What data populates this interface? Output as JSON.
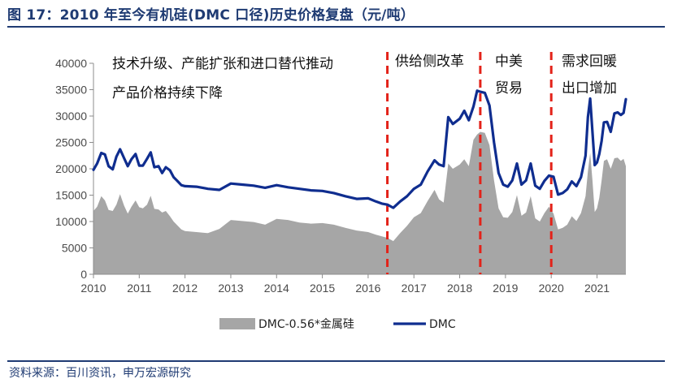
{
  "header": {
    "title": "图 17：2010 年至今有机硅(DMC 口径)历史价格复盘（元/吨）"
  },
  "footer": {
    "source": "资料来源：百川资讯，申万宏源研究"
  },
  "chart_data": {
    "type": "area+line",
    "title": "2010 年至今有机硅(DMC 口径)历史价格复盘（元/吨）",
    "unit": "元/吨",
    "xlim": [
      2010,
      2021.63
    ],
    "ylim": [
      0,
      40000
    ],
    "y_ticks": [
      "0",
      "5000",
      "10000",
      "15000",
      "20000",
      "25000",
      "30000",
      "35000",
      "40000"
    ],
    "x_ticks": [
      "2010",
      "2011",
      "2012",
      "2013",
      "2014",
      "2015",
      "2016",
      "2017",
      "2018",
      "2019",
      "2020",
      "2021"
    ],
    "grid": false,
    "legend": [
      "DMC-0.56*金属硅",
      "DMC"
    ],
    "colors": {
      "area": "#A6A6A6",
      "line": "#0F2D8F",
      "divider": "#E32219",
      "title": "#1F3B73"
    },
    "dividers": [
      2016.42,
      2018.45,
      2020.0
    ],
    "annotations": [
      "技术升级、产能扩张和进口替代推动",
      "产品价格持续下降",
      "供给侧改革",
      "中美",
      "贸易",
      "需求回暖",
      "出口增加"
    ],
    "series": [
      {
        "name": "DMC",
        "kind": "line",
        "x": [
          2010.0,
          2010.08,
          2010.17,
          2010.25,
          2010.33,
          2010.42,
          2010.5,
          2010.58,
          2010.67,
          2010.75,
          2010.83,
          2010.92,
          2011.0,
          2011.08,
          2011.17,
          2011.25,
          2011.33,
          2011.42,
          2011.5,
          2011.58,
          2011.67,
          2011.75,
          2011.83,
          2011.92,
          2012.0,
          2012.25,
          2012.5,
          2012.75,
          2013.0,
          2013.25,
          2013.5,
          2013.75,
          2014.0,
          2014.25,
          2014.5,
          2014.75,
          2015.0,
          2015.25,
          2015.5,
          2015.75,
          2016.0,
          2016.17,
          2016.3,
          2016.42,
          2016.55,
          2016.7,
          2016.85,
          2017.0,
          2017.15,
          2017.3,
          2017.45,
          2017.55,
          2017.65,
          2017.75,
          2017.85,
          2018.0,
          2018.1,
          2018.2,
          2018.3,
          2018.38,
          2018.45,
          2018.55,
          2018.65,
          2018.75,
          2018.85,
          2018.95,
          2019.05,
          2019.15,
          2019.25,
          2019.35,
          2019.45,
          2019.55,
          2019.65,
          2019.75,
          2019.85,
          2019.95,
          2020.05,
          2020.15,
          2020.25,
          2020.35,
          2020.45,
          2020.55,
          2020.65,
          2020.75,
          2020.8,
          2020.85,
          2020.9,
          2020.95,
          2021.0,
          2021.05,
          2021.1,
          2021.15,
          2021.22,
          2021.3,
          2021.38,
          2021.45,
          2021.52,
          2021.58,
          2021.63
        ],
        "values": [
          19800,
          21000,
          23000,
          22700,
          20500,
          19900,
          22300,
          23700,
          22000,
          20500,
          21800,
          22800,
          20600,
          20600,
          21900,
          23100,
          20300,
          20500,
          19200,
          20300,
          19700,
          18400,
          17700,
          16900,
          16700,
          16600,
          16200,
          16000,
          17200,
          17000,
          16800,
          16400,
          16900,
          16500,
          16200,
          15900,
          15800,
          15400,
          14800,
          14300,
          14400,
          13800,
          13400,
          13200,
          12600,
          13800,
          14800,
          16200,
          17000,
          19500,
          21600,
          20800,
          20500,
          29800,
          28500,
          29500,
          31000,
          29200,
          31800,
          34800,
          34600,
          34400,
          32000,
          25000,
          19200,
          17000,
          16600,
          17800,
          21000,
          17000,
          17800,
          21000,
          16800,
          16200,
          17700,
          18700,
          18500,
          15100,
          15400,
          16100,
          17600,
          16700,
          18400,
          22500,
          29800,
          33300,
          27000,
          20700,
          21200,
          22800,
          25300,
          28800,
          28900,
          27000,
          30500,
          30700,
          30200,
          30600,
          33200
        ]
      },
      {
        "name": "DMC-0.56*金属硅",
        "kind": "area",
        "x": [
          2010.0,
          2010.08,
          2010.17,
          2010.25,
          2010.33,
          2010.42,
          2010.5,
          2010.58,
          2010.67,
          2010.75,
          2010.83,
          2010.92,
          2011.0,
          2011.08,
          2011.17,
          2011.25,
          2011.33,
          2011.42,
          2011.5,
          2011.58,
          2011.67,
          2011.75,
          2011.83,
          2011.92,
          2012.0,
          2012.25,
          2012.5,
          2012.75,
          2013.0,
          2013.25,
          2013.5,
          2013.75,
          2014.0,
          2014.25,
          2014.5,
          2014.75,
          2015.0,
          2015.25,
          2015.5,
          2015.75,
          2016.0,
          2016.17,
          2016.3,
          2016.42,
          2016.55,
          2016.7,
          2016.85,
          2017.0,
          2017.15,
          2017.3,
          2017.45,
          2017.55,
          2017.65,
          2017.75,
          2017.85,
          2018.0,
          2018.1,
          2018.2,
          2018.3,
          2018.38,
          2018.45,
          2018.55,
          2018.65,
          2018.75,
          2018.85,
          2018.95,
          2019.05,
          2019.15,
          2019.25,
          2019.35,
          2019.45,
          2019.55,
          2019.65,
          2019.75,
          2019.85,
          2019.95,
          2020.05,
          2020.15,
          2020.25,
          2020.35,
          2020.45,
          2020.55,
          2020.65,
          2020.75,
          2020.8,
          2020.85,
          2020.9,
          2020.95,
          2021.0,
          2021.05,
          2021.1,
          2021.15,
          2021.22,
          2021.3,
          2021.38,
          2021.45,
          2021.52,
          2021.58,
          2021.63
        ],
        "values": [
          12000,
          12800,
          14800,
          14000,
          12200,
          12000,
          13200,
          15200,
          13000,
          11500,
          12800,
          14000,
          12700,
          12500,
          13200,
          14900,
          12400,
          12300,
          11700,
          12000,
          11000,
          10000,
          9300,
          8500,
          8200,
          8000,
          7800,
          8600,
          10300,
          10100,
          9900,
          9400,
          10500,
          10300,
          9800,
          9600,
          9700,
          9400,
          8800,
          8300,
          8000,
          7500,
          7200,
          6900,
          6300,
          7800,
          9200,
          10800,
          11600,
          13900,
          16000,
          14200,
          13600,
          21000,
          20000,
          20800,
          21800,
          20500,
          25500,
          26500,
          27000,
          26800,
          24500,
          17800,
          12500,
          10800,
          10700,
          11800,
          15000,
          11100,
          11700,
          14800,
          10600,
          10000,
          11600,
          12800,
          11500,
          8500,
          8800,
          9400,
          11000,
          10100,
          11600,
          14800,
          19500,
          23000,
          17800,
          11800,
          12500,
          14500,
          17800,
          21500,
          21800,
          20000,
          22000,
          22100,
          21500,
          21900,
          20500
        ]
      }
    ]
  }
}
